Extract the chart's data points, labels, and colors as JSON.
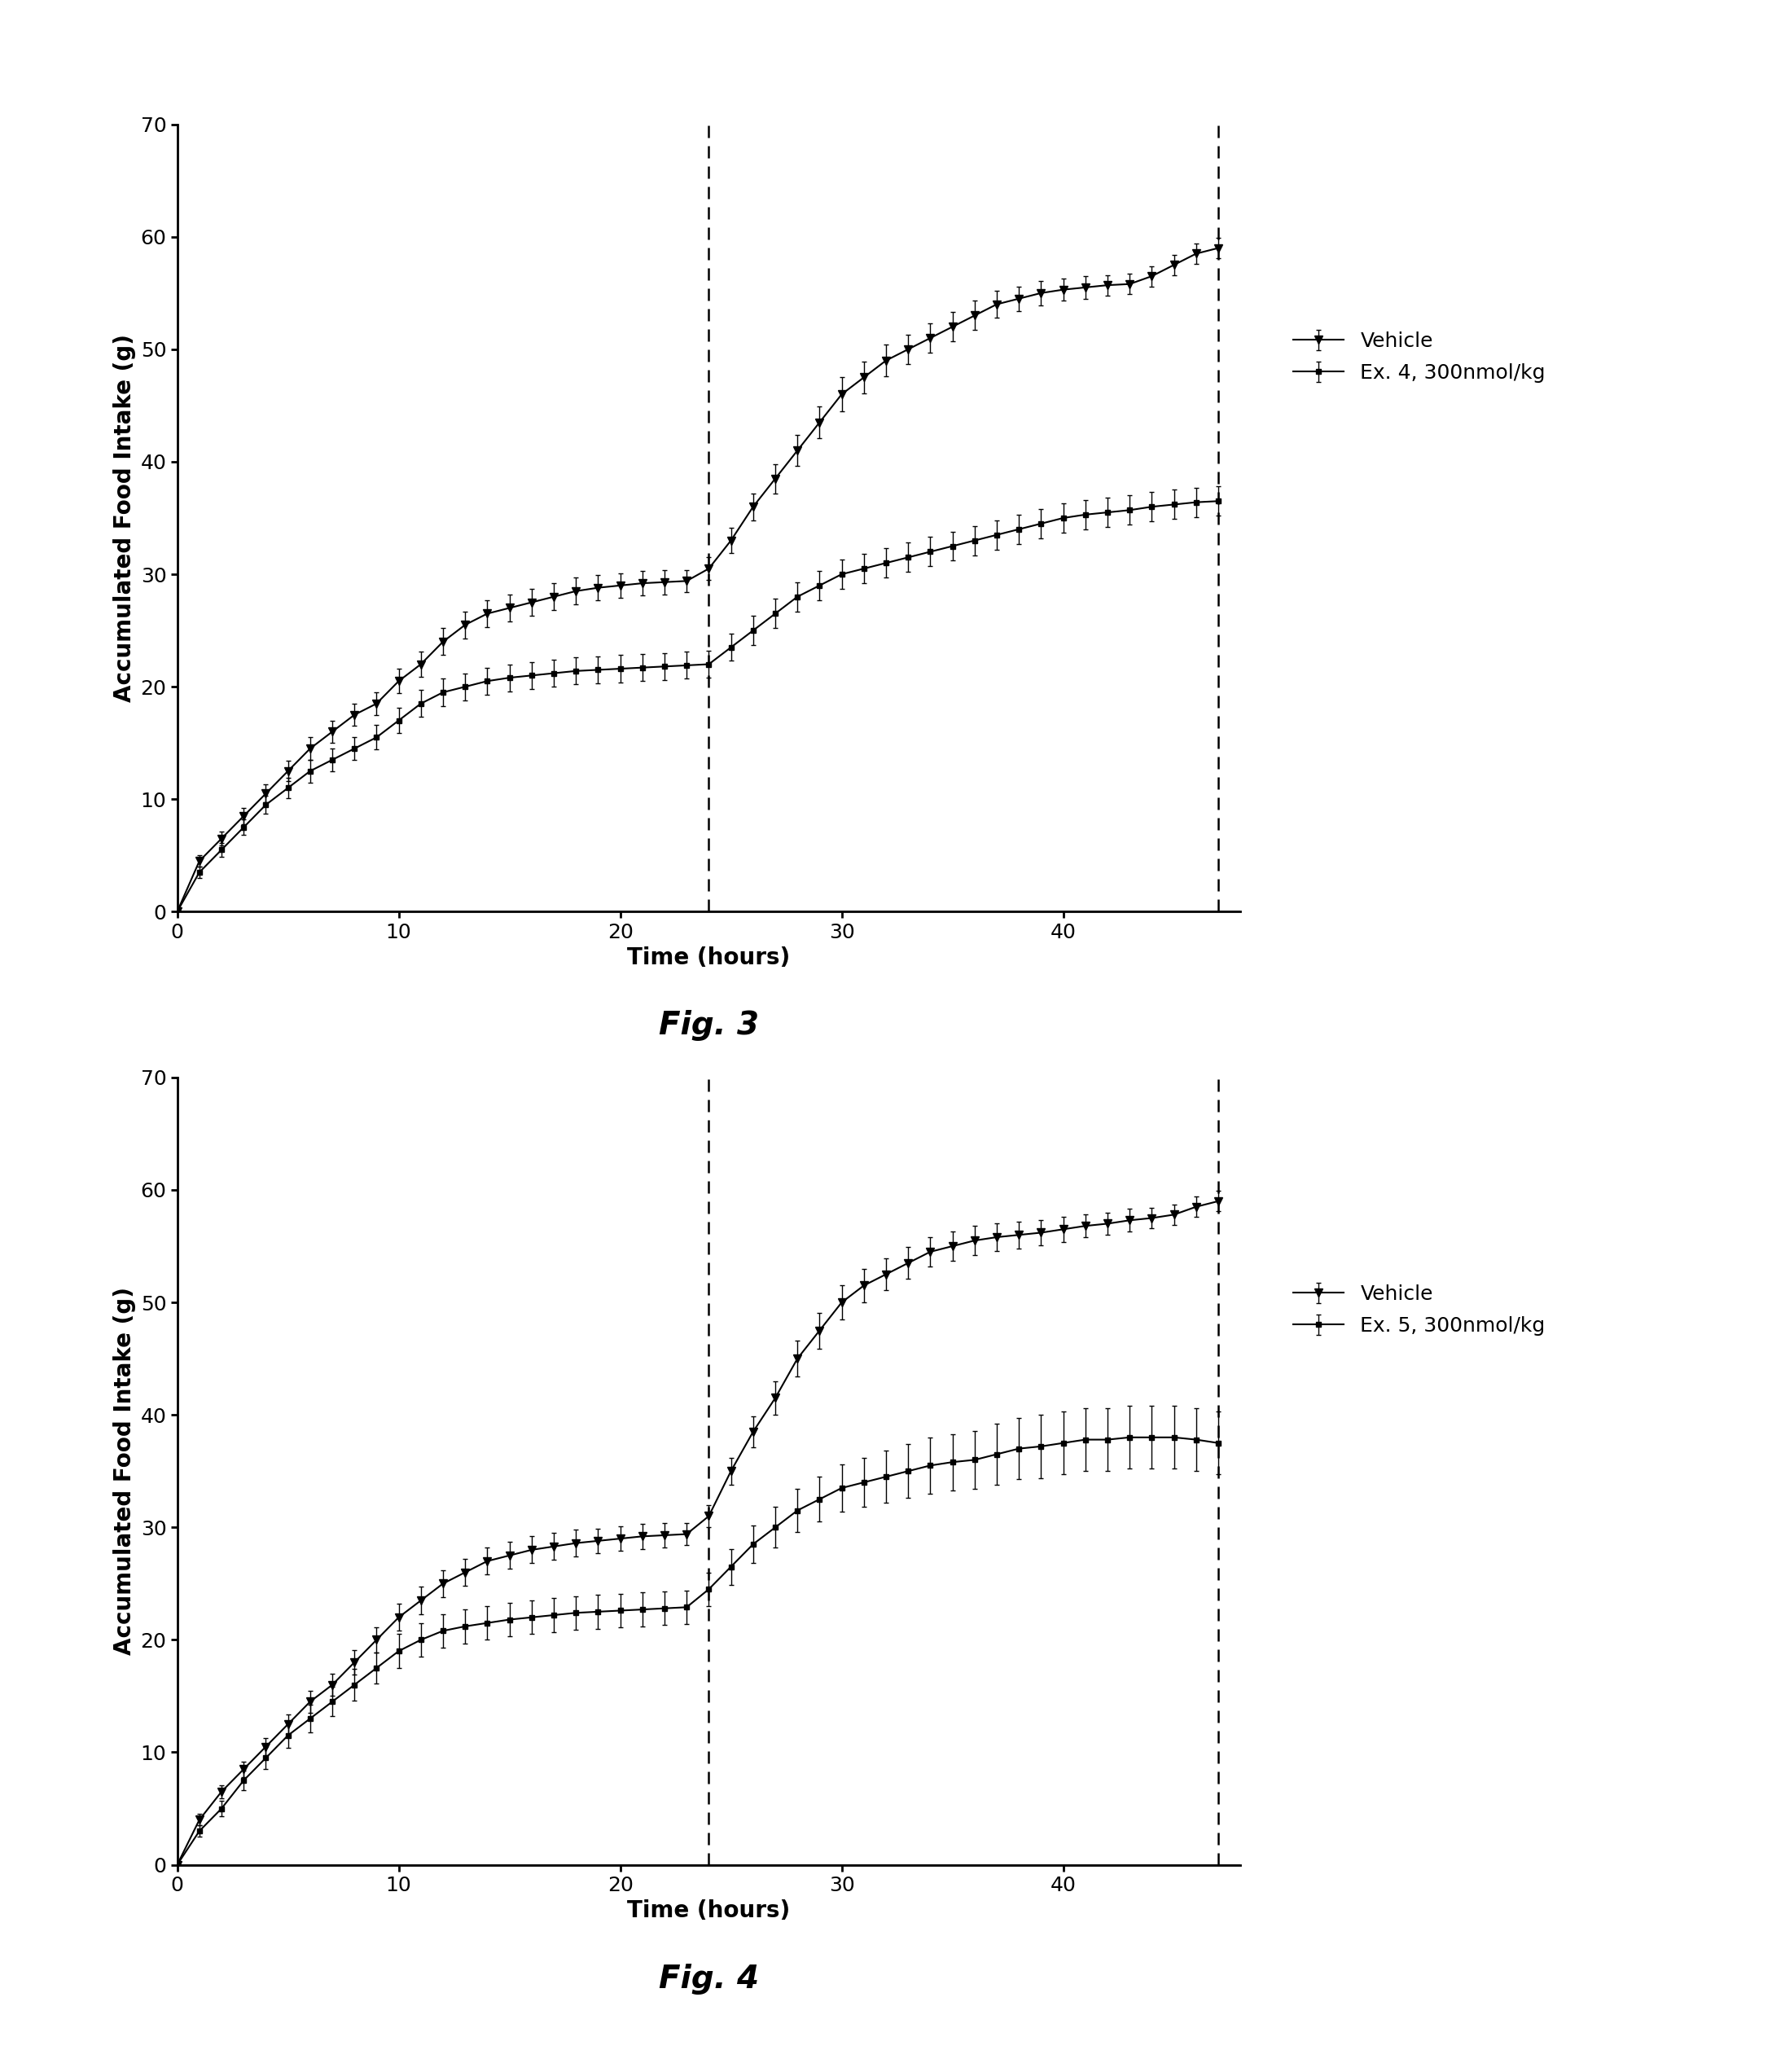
{
  "fig3": {
    "xlabel": "Time (hours)",
    "ylabel": "Accumulated Food Intake (g)",
    "ylim": [
      0,
      70
    ],
    "xlim": [
      0,
      48
    ],
    "yticks": [
      0,
      10,
      20,
      30,
      40,
      50,
      60,
      70
    ],
    "xticks": [
      0,
      10,
      20,
      30,
      40
    ],
    "vlines": [
      24,
      47
    ],
    "fig_label": "Fig. 3",
    "legend1": "Vehicle",
    "legend2": "Ex. 4, 300nmol/kg",
    "vehicle_x": [
      0,
      1,
      2,
      3,
      4,
      5,
      6,
      7,
      8,
      9,
      10,
      11,
      12,
      13,
      14,
      15,
      16,
      17,
      18,
      19,
      20,
      21,
      22,
      23,
      24,
      25,
      26,
      27,
      28,
      29,
      30,
      31,
      32,
      33,
      34,
      35,
      36,
      37,
      38,
      39,
      40,
      41,
      42,
      43,
      44,
      45,
      46,
      47
    ],
    "vehicle_y": [
      0,
      4.5,
      6.5,
      8.5,
      10.5,
      12.5,
      14.5,
      16.0,
      17.5,
      18.5,
      20.5,
      22.0,
      24.0,
      25.5,
      26.5,
      27.0,
      27.5,
      28.0,
      28.5,
      28.8,
      29.0,
      29.2,
      29.3,
      29.4,
      30.5,
      33.0,
      36.0,
      38.5,
      41.0,
      43.5,
      46.0,
      47.5,
      49.0,
      50.0,
      51.0,
      52.0,
      53.0,
      54.0,
      54.5,
      55.0,
      55.3,
      55.5,
      55.7,
      55.8,
      56.5,
      57.5,
      58.5,
      59.0
    ],
    "vehicle_err": [
      0,
      0.5,
      0.6,
      0.7,
      0.8,
      0.9,
      1.0,
      1.0,
      1.0,
      1.0,
      1.1,
      1.1,
      1.2,
      1.2,
      1.2,
      1.2,
      1.2,
      1.2,
      1.2,
      1.1,
      1.1,
      1.1,
      1.1,
      1.0,
      1.0,
      1.1,
      1.2,
      1.3,
      1.4,
      1.4,
      1.5,
      1.4,
      1.4,
      1.3,
      1.3,
      1.3,
      1.3,
      1.2,
      1.1,
      1.1,
      1.0,
      1.0,
      0.9,
      0.9,
      0.9,
      0.9,
      0.9,
      0.9
    ],
    "drug_x": [
      0,
      1,
      2,
      3,
      4,
      5,
      6,
      7,
      8,
      9,
      10,
      11,
      12,
      13,
      14,
      15,
      16,
      17,
      18,
      19,
      20,
      21,
      22,
      23,
      24,
      25,
      26,
      27,
      28,
      29,
      30,
      31,
      32,
      33,
      34,
      35,
      36,
      37,
      38,
      39,
      40,
      41,
      42,
      43,
      44,
      45,
      46,
      47
    ],
    "drug_y": [
      0,
      3.5,
      5.5,
      7.5,
      9.5,
      11.0,
      12.5,
      13.5,
      14.5,
      15.5,
      17.0,
      18.5,
      19.5,
      20.0,
      20.5,
      20.8,
      21.0,
      21.2,
      21.4,
      21.5,
      21.6,
      21.7,
      21.8,
      21.9,
      22.0,
      23.5,
      25.0,
      26.5,
      28.0,
      29.0,
      30.0,
      30.5,
      31.0,
      31.5,
      32.0,
      32.5,
      33.0,
      33.5,
      34.0,
      34.5,
      35.0,
      35.3,
      35.5,
      35.7,
      36.0,
      36.2,
      36.4,
      36.5
    ],
    "drug_err": [
      0,
      0.5,
      0.6,
      0.7,
      0.8,
      0.9,
      1.0,
      1.0,
      1.0,
      1.1,
      1.1,
      1.2,
      1.2,
      1.2,
      1.2,
      1.2,
      1.2,
      1.2,
      1.2,
      1.2,
      1.2,
      1.2,
      1.2,
      1.2,
      1.2,
      1.2,
      1.3,
      1.3,
      1.3,
      1.3,
      1.3,
      1.3,
      1.3,
      1.3,
      1.3,
      1.3,
      1.3,
      1.3,
      1.3,
      1.3,
      1.3,
      1.3,
      1.3,
      1.3,
      1.3,
      1.3,
      1.3,
      1.3
    ]
  },
  "fig4": {
    "xlabel": "Time (hours)",
    "ylabel": "Accumulated Food Intake (g)",
    "ylim": [
      0,
      70
    ],
    "xlim": [
      0,
      48
    ],
    "yticks": [
      0,
      10,
      20,
      30,
      40,
      50,
      60,
      70
    ],
    "xticks": [
      0,
      10,
      20,
      30,
      40
    ],
    "vlines": [
      24,
      47
    ],
    "fig_label": "Fig. 4",
    "legend1": "Vehicle",
    "legend2": "Ex. 5, 300nmol/kg",
    "vehicle_x": [
      0,
      1,
      2,
      3,
      4,
      5,
      6,
      7,
      8,
      9,
      10,
      11,
      12,
      13,
      14,
      15,
      16,
      17,
      18,
      19,
      20,
      21,
      22,
      23,
      24,
      25,
      26,
      27,
      28,
      29,
      30,
      31,
      32,
      33,
      34,
      35,
      36,
      37,
      38,
      39,
      40,
      41,
      42,
      43,
      44,
      45,
      46,
      47
    ],
    "vehicle_y": [
      0,
      4.0,
      6.5,
      8.5,
      10.5,
      12.5,
      14.5,
      16.0,
      18.0,
      20.0,
      22.0,
      23.5,
      25.0,
      26.0,
      27.0,
      27.5,
      28.0,
      28.3,
      28.6,
      28.8,
      29.0,
      29.2,
      29.3,
      29.4,
      31.0,
      35.0,
      38.5,
      41.5,
      45.0,
      47.5,
      50.0,
      51.5,
      52.5,
      53.5,
      54.5,
      55.0,
      55.5,
      55.8,
      56.0,
      56.2,
      56.5,
      56.8,
      57.0,
      57.3,
      57.5,
      57.8,
      58.5,
      59.0
    ],
    "vehicle_err": [
      0,
      0.5,
      0.6,
      0.7,
      0.8,
      0.9,
      1.0,
      1.0,
      1.1,
      1.1,
      1.2,
      1.2,
      1.2,
      1.2,
      1.2,
      1.2,
      1.2,
      1.2,
      1.2,
      1.1,
      1.1,
      1.1,
      1.1,
      1.0,
      1.0,
      1.2,
      1.4,
      1.5,
      1.6,
      1.6,
      1.5,
      1.5,
      1.4,
      1.4,
      1.3,
      1.3,
      1.3,
      1.2,
      1.2,
      1.1,
      1.1,
      1.0,
      1.0,
      1.0,
      0.9,
      0.9,
      0.9,
      0.9
    ],
    "drug_x": [
      0,
      1,
      2,
      3,
      4,
      5,
      6,
      7,
      8,
      9,
      10,
      11,
      12,
      13,
      14,
      15,
      16,
      17,
      18,
      19,
      20,
      21,
      22,
      23,
      24,
      25,
      26,
      27,
      28,
      29,
      30,
      31,
      32,
      33,
      34,
      35,
      36,
      37,
      38,
      39,
      40,
      41,
      42,
      43,
      44,
      45,
      46,
      47
    ],
    "drug_y": [
      0,
      3.0,
      5.0,
      7.5,
      9.5,
      11.5,
      13.0,
      14.5,
      16.0,
      17.5,
      19.0,
      20.0,
      20.8,
      21.2,
      21.5,
      21.8,
      22.0,
      22.2,
      22.4,
      22.5,
      22.6,
      22.7,
      22.8,
      22.9,
      24.5,
      26.5,
      28.5,
      30.0,
      31.5,
      32.5,
      33.5,
      34.0,
      34.5,
      35.0,
      35.5,
      35.8,
      36.0,
      36.5,
      37.0,
      37.2,
      37.5,
      37.8,
      37.8,
      38.0,
      38.0,
      38.0,
      37.8,
      37.5
    ],
    "drug_err": [
      0,
      0.5,
      0.7,
      0.9,
      1.0,
      1.1,
      1.2,
      1.3,
      1.4,
      1.4,
      1.5,
      1.5,
      1.5,
      1.5,
      1.5,
      1.5,
      1.5,
      1.5,
      1.5,
      1.5,
      1.5,
      1.5,
      1.5,
      1.5,
      1.5,
      1.6,
      1.7,
      1.8,
      1.9,
      2.0,
      2.1,
      2.2,
      2.3,
      2.4,
      2.5,
      2.5,
      2.6,
      2.7,
      2.7,
      2.8,
      2.8,
      2.8,
      2.8,
      2.8,
      2.8,
      2.8,
      2.8,
      2.8
    ]
  },
  "line_color": "#000000",
  "marker_size": 7,
  "line_width": 1.5,
  "capsize": 2,
  "elinewidth": 1.0,
  "title_fontsize": 28,
  "label_fontsize": 20,
  "tick_fontsize": 18,
  "legend_fontsize": 18,
  "background_color": "#ffffff"
}
